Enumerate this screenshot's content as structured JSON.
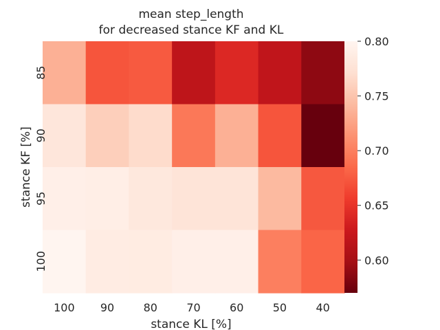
{
  "chart_data": {
    "type": "heatmap",
    "title_lines": [
      "mean step_length",
      "for decreased stance KF and KL"
    ],
    "xlabel": "stance KL [%]",
    "ylabel": "stance KF [%]",
    "x_categories": [
      "100",
      "90",
      "80",
      "70",
      "60",
      "50",
      "40"
    ],
    "y_categories": [
      "85",
      "90",
      "95",
      "100"
    ],
    "values": [
      [
        0.735,
        0.672,
        0.675,
        0.618,
        0.641,
        0.619,
        0.588
      ],
      [
        0.78,
        0.758,
        0.768,
        0.695,
        0.735,
        0.672,
        0.57
      ],
      [
        0.792,
        0.79,
        0.782,
        0.777,
        0.777,
        0.742,
        0.674
      ],
      [
        0.802,
        0.788,
        0.787,
        0.792,
        0.792,
        0.7,
        0.682
      ]
    ],
    "colorbar": {
      "vmin": 0.57,
      "vmax": 0.8,
      "ticks": [
        0.6,
        0.65,
        0.7,
        0.75,
        0.8
      ],
      "tick_labels": [
        "0.60",
        "0.65",
        "0.70",
        "0.75",
        "0.80"
      ],
      "colormap": "Reds_r",
      "colors": [
        "#67000d",
        "#a50f15",
        "#cb181d",
        "#ef3b2c",
        "#fb6a4a",
        "#fc9272",
        "#fcbba1",
        "#fee0d2",
        "#fff5f0"
      ]
    },
    "grid": false,
    "legend": "colorbar-right"
  }
}
